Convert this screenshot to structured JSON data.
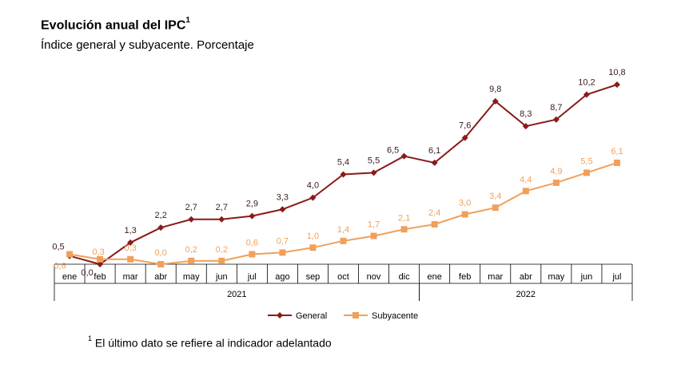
{
  "title": "Evolución anual del IPC",
  "title_sup": "1",
  "subtitle": "Índice general y subyacente. Porcentaje",
  "footnote_marker": "1",
  "footnote": "El último dato se refiere al indicador adelantado",
  "colors": {
    "general": "#8B1A1A",
    "subyacente": "#F0A05A"
  },
  "chart_data": {
    "type": "line",
    "categories": [
      "ene",
      "feb",
      "mar",
      "abr",
      "may",
      "jun",
      "jul",
      "ago",
      "sep",
      "oct",
      "nov",
      "dic",
      "ene",
      "feb",
      "mar",
      "abr",
      "may",
      "jun",
      "jul"
    ],
    "year_groups": [
      {
        "label": "2021",
        "start": 0,
        "end": 11
      },
      {
        "label": "2022",
        "start": 12,
        "end": 18
      }
    ],
    "series": [
      {
        "name": "General",
        "marker": "diamond",
        "values": [
          0.5,
          0.0,
          1.3,
          2.2,
          2.7,
          2.7,
          2.9,
          3.3,
          4.0,
          5.4,
          5.5,
          6.5,
          6.1,
          7.6,
          9.8,
          8.3,
          8.7,
          10.2,
          10.8
        ],
        "labels": [
          "0,5",
          "0,0",
          "1,3",
          "2,2",
          "2,7",
          "2,7",
          "2,9",
          "3,3",
          "4,0",
          "5,4",
          "5,5",
          "6,5",
          "6,1",
          "7,6",
          "9,8",
          "8,3",
          "8,7",
          "10,2",
          "10,8"
        ]
      },
      {
        "name": "Subyacente",
        "marker": "square",
        "values": [
          0.6,
          0.3,
          0.3,
          0.0,
          0.2,
          0.2,
          0.6,
          0.7,
          1.0,
          1.4,
          1.7,
          2.1,
          2.4,
          3.0,
          3.4,
          4.4,
          4.9,
          5.5,
          6.1
        ],
        "labels": [
          "0,6",
          "0,3",
          "0,3",
          "0,0",
          "0,2",
          "0,2",
          "0,6",
          "0,7",
          "1,0",
          "1,4",
          "1,7",
          "2,1",
          "2,4",
          "3,0",
          "3,4",
          "4,4",
          "4,9",
          "5,5",
          "6,1"
        ]
      }
    ],
    "ylim": [
      0,
      10.8
    ],
    "grid": false,
    "legend_position": "bottom-center"
  }
}
